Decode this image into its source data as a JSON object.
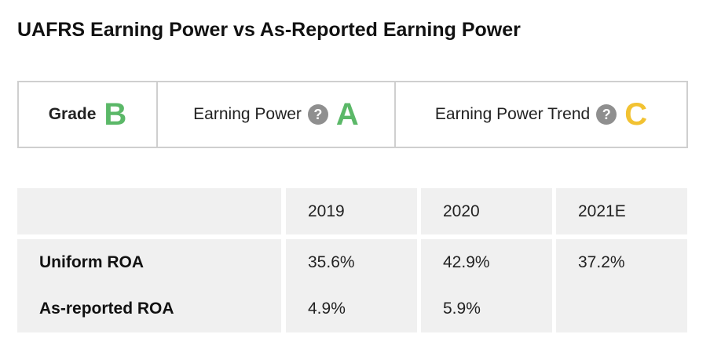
{
  "title": "UAFRS Earning Power vs As-Reported Earning Power",
  "grades": {
    "overall": {
      "label": "Grade",
      "value": "B",
      "color": "#5bb868"
    },
    "earning_power": {
      "label": "Earning Power",
      "value": "A",
      "color": "#5bb868",
      "help": "?"
    },
    "earning_power_trend": {
      "label": "Earning Power Trend",
      "value": "C",
      "color": "#f2c232",
      "help": "?"
    }
  },
  "table": {
    "columns": [
      "",
      "2019",
      "2020",
      "2021E"
    ],
    "rows": [
      {
        "label": "Uniform ROA",
        "values": [
          "35.6%",
          "42.9%",
          "37.2%"
        ]
      },
      {
        "label": "As-reported ROA",
        "values": [
          "4.9%",
          "5.9%",
          ""
        ]
      }
    ]
  }
}
